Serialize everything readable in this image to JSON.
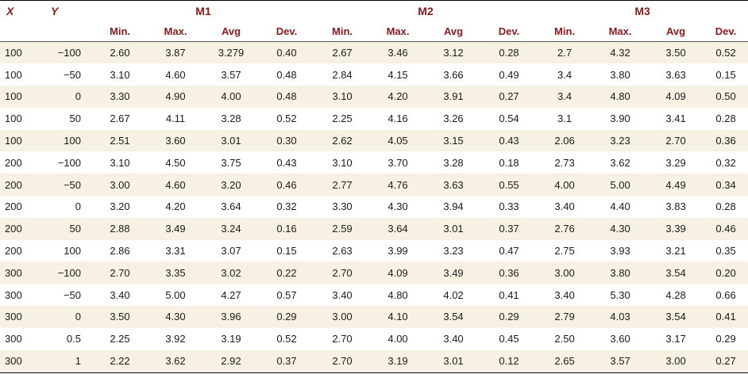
{
  "header": {
    "x_label": "X",
    "y_label": "Y",
    "groups": [
      "M1",
      "M2",
      "M3"
    ],
    "sub": [
      "Min.",
      "Max.",
      "Avg",
      "Dev.",
      "Min.",
      "Max.",
      "Avg",
      "Dev.",
      "Min.",
      "Max.",
      "Avg",
      "Dev."
    ]
  },
  "rows": [
    [
      "100",
      "−100",
      "2.60",
      "3.87",
      "3.279",
      "0.40",
      "2.67",
      "3.46",
      "3.12",
      "0.28",
      "2.7",
      "4.32",
      "3.50",
      "0.52"
    ],
    [
      "100",
      "−50",
      "3.10",
      "4.60",
      "3.57",
      "0.48",
      "2.84",
      "4.15",
      "3.66",
      "0.49",
      "3.4",
      "3.80",
      "3.63",
      "0.15"
    ],
    [
      "100",
      "0",
      "3.30",
      "4.90",
      "4.00",
      "0.48",
      "3.10",
      "4.20",
      "3.91",
      "0.27",
      "3.4",
      "4.80",
      "4.09",
      "0.50"
    ],
    [
      "100",
      "50",
      "2.67",
      "4.11",
      "3.28",
      "0.52",
      "2.25",
      "4.16",
      "3.26",
      "0.54",
      "3.1",
      "3.90",
      "3.41",
      "0.28"
    ],
    [
      "100",
      "100",
      "2.51",
      "3.60",
      "3.01",
      "0.30",
      "2.62",
      "4.05",
      "3.15",
      "0.43",
      "2.06",
      "3.23",
      "2.70",
      "0.36"
    ],
    [
      "200",
      "−100",
      "3.10",
      "4.50",
      "3.75",
      "0.43",
      "3.10",
      "3.70",
      "3.28",
      "0.18",
      "2.73",
      "3.62",
      "3.29",
      "0.32"
    ],
    [
      "200",
      "−50",
      "3.00",
      "4.60",
      "3.20",
      "0.46",
      "2.77",
      "4.76",
      "3.63",
      "0.55",
      "4.00",
      "5.00",
      "4.49",
      "0.34"
    ],
    [
      "200",
      "0",
      "3.20",
      "4.20",
      "3.64",
      "0.32",
      "3.30",
      "4.30",
      "3.94",
      "0.33",
      "3.40",
      "4.40",
      "3.83",
      "0.28"
    ],
    [
      "200",
      "50",
      "2.88",
      "3.49",
      "3.24",
      "0.16",
      "2.59",
      "3.64",
      "3.01",
      "0.37",
      "2.76",
      "4.30",
      "3.39",
      "0.46"
    ],
    [
      "200",
      "100",
      "2.86",
      "3.31",
      "3.07",
      "0.15",
      "2.63",
      "3.99",
      "3.23",
      "0.47",
      "2.75",
      "3.93",
      "3.21",
      "0.35"
    ],
    [
      "300",
      "−100",
      "2.70",
      "3.35",
      "3.02",
      "0.22",
      "2.70",
      "4.09",
      "3.49",
      "0.36",
      "3.00",
      "3.80",
      "3.54",
      "0.20"
    ],
    [
      "300",
      "−50",
      "3.40",
      "5.00",
      "4.27",
      "0.57",
      "3.40",
      "4.80",
      "4.02",
      "0.41",
      "3.40",
      "5.30",
      "4.28",
      "0.66"
    ],
    [
      "300",
      "0",
      "3.50",
      "4.30",
      "3.96",
      "0.29",
      "3.00",
      "4.10",
      "3.54",
      "0.29",
      "2.79",
      "4.03",
      "3.54",
      "0.41"
    ],
    [
      "300",
      "0.5",
      "2.25",
      "3.92",
      "3.19",
      "0.52",
      "2.70",
      "4.00",
      "3.40",
      "0.45",
      "2.50",
      "3.60",
      "3.17",
      "0.29"
    ],
    [
      "300",
      "1",
      "2.22",
      "3.62",
      "2.92",
      "0.37",
      "2.70",
      "3.19",
      "3.01",
      "0.12",
      "2.65",
      "3.57",
      "3.00",
      "0.27"
    ]
  ]
}
